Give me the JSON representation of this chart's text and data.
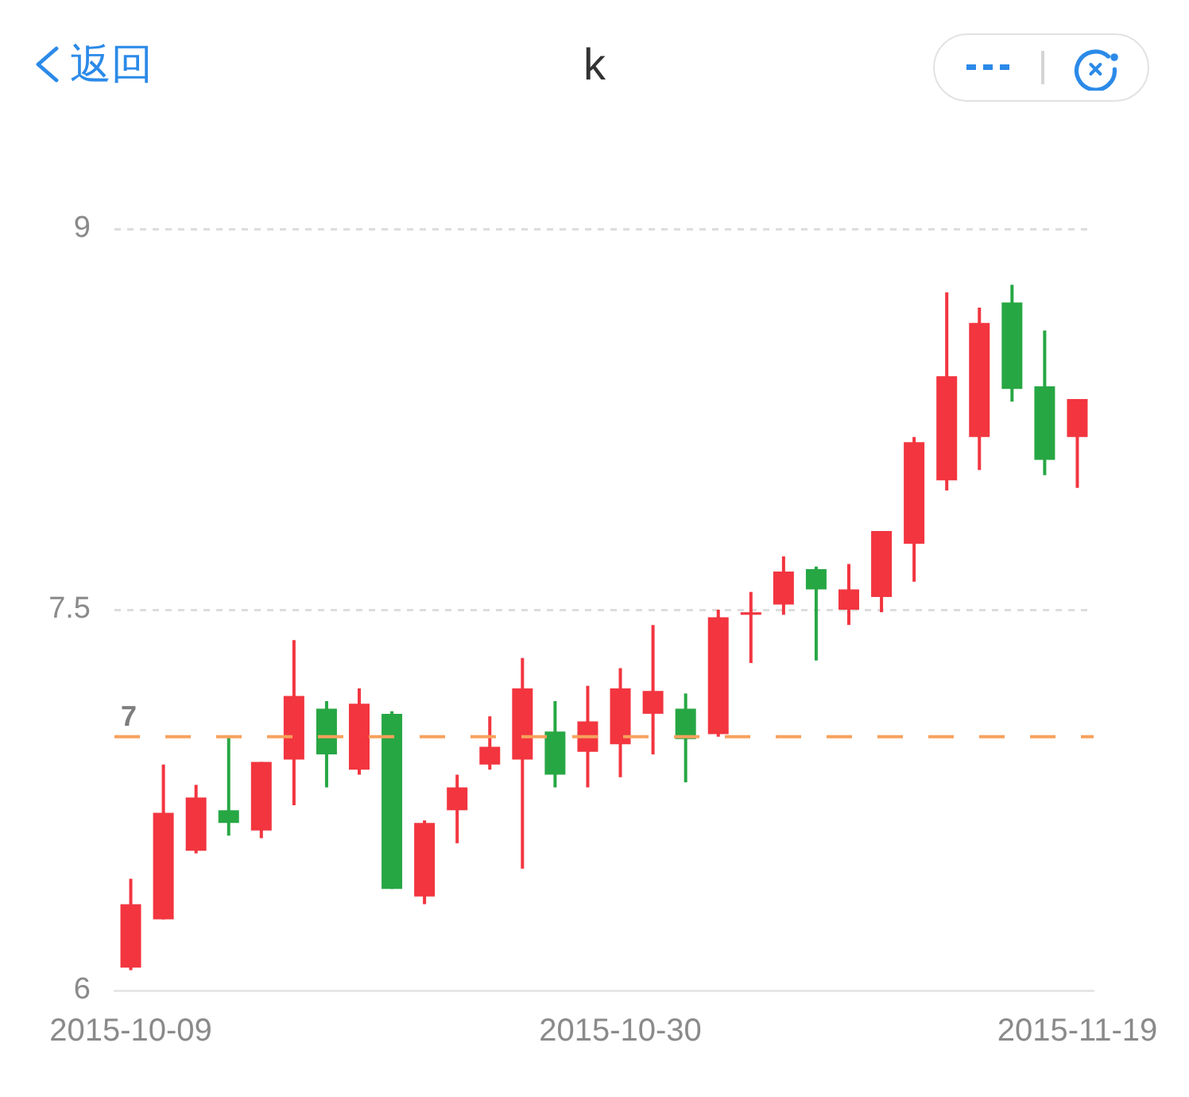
{
  "chart_data": {
    "type": "candlestick",
    "title": "k",
    "annotations": [
      "返回"
    ],
    "categories": [
      "2015-10-09",
      null,
      null,
      null,
      null,
      null,
      null,
      null,
      null,
      null,
      null,
      null,
      null,
      null,
      null,
      "2015-10-30",
      null,
      null,
      null,
      null,
      null,
      null,
      null,
      null,
      null,
      null,
      null,
      null,
      null,
      "2015-11-19"
    ],
    "ohlc": [
      [
        6.09,
        6.44,
        6.08,
        6.34
      ],
      [
        6.28,
        6.89,
        6.28,
        6.7
      ],
      [
        6.55,
        6.81,
        6.54,
        6.76
      ],
      [
        6.71,
        7.0,
        6.61,
        6.66
      ],
      [
        6.63,
        6.9,
        6.6,
        6.9
      ],
      [
        6.91,
        7.38,
        6.73,
        7.16
      ],
      [
        7.11,
        7.14,
        6.8,
        6.93
      ],
      [
        6.87,
        7.19,
        6.85,
        7.13
      ],
      [
        7.09,
        7.1,
        6.4,
        6.4
      ],
      [
        6.37,
        6.67,
        6.34,
        6.66
      ],
      [
        6.71,
        6.85,
        6.58,
        6.8
      ],
      [
        6.89,
        7.08,
        6.87,
        6.96
      ],
      [
        6.91,
        7.31,
        6.48,
        7.19
      ],
      [
        7.02,
        7.14,
        6.8,
        6.85
      ],
      [
        6.94,
        7.2,
        6.8,
        7.06
      ],
      [
        6.97,
        7.27,
        6.84,
        7.19
      ],
      [
        7.09,
        7.44,
        6.93,
        7.18
      ],
      [
        7.11,
        7.17,
        6.82,
        6.99
      ],
      [
        7.01,
        7.5,
        7.0,
        7.47
      ],
      [
        7.48,
        7.57,
        7.29,
        7.49
      ],
      [
        7.52,
        7.71,
        7.48,
        7.65
      ],
      [
        7.66,
        7.67,
        7.3,
        7.58
      ],
      [
        7.5,
        7.68,
        7.44,
        7.58
      ],
      [
        7.55,
        7.81,
        7.49,
        7.81
      ],
      [
        7.76,
        8.18,
        7.61,
        8.16
      ],
      [
        8.01,
        8.75,
        7.97,
        8.42
      ],
      [
        8.18,
        8.69,
        8.05,
        8.63
      ],
      [
        8.71,
        8.78,
        8.32,
        8.37
      ],
      [
        8.38,
        8.6,
        8.03,
        8.09
      ],
      [
        8.18,
        8.33,
        7.98,
        8.33
      ]
    ],
    "colors": [
      "#f2353f",
      "#f2353f",
      "#f2353f",
      "#27a744",
      "#f2353f",
      "#f2353f",
      "#27a744",
      "#f2353f",
      "#27a744",
      "#f2353f",
      "#f2353f",
      "#f2353f",
      "#f2353f",
      "#27a744",
      "#f2353f",
      "#f2353f",
      "#f2353f",
      "#27a744",
      "#f2353f",
      "#f2353f",
      "#f2353f",
      "#27a744",
      "#f2353f",
      "#f2353f",
      "#f2353f",
      "#f2353f",
      "#f2353f",
      "#27a744",
      "#27a744",
      "#f2353f"
    ],
    "ylim": [
      6,
      9
    ],
    "yticks": [
      6,
      7.5,
      9
    ],
    "grid": "y",
    "ref_lines": [
      {
        "axis": "y",
        "value": 7,
        "label": "7",
        "color": "#f7a15c",
        "line_style": "dashed"
      }
    ]
  }
}
